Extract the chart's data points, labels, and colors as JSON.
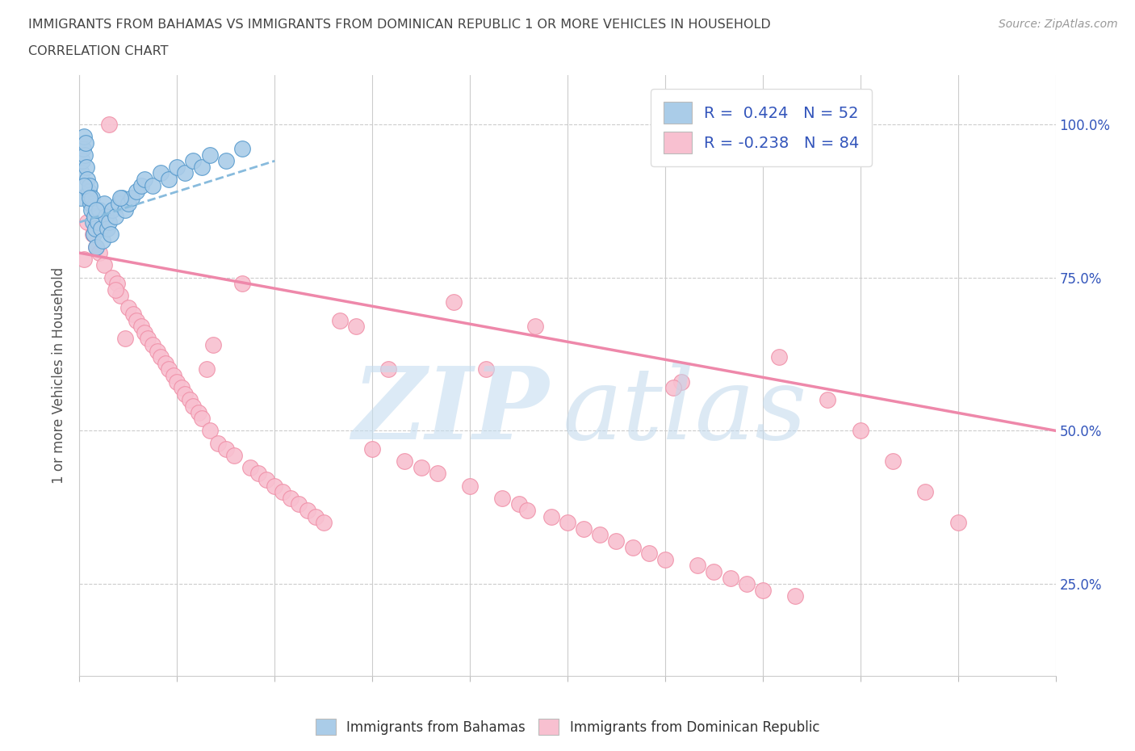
{
  "title_line1": "IMMIGRANTS FROM BAHAMAS VS IMMIGRANTS FROM DOMINICAN REPUBLIC 1 OR MORE VEHICLES IN HOUSEHOLD",
  "title_line2": "CORRELATION CHART",
  "source": "Source: ZipAtlas.com",
  "ylabel": "1 or more Vehicles in Household",
  "xlim": [
    0.0,
    60.0
  ],
  "ylim": [
    10.0,
    108.0
  ],
  "yticks": [
    25,
    50,
    75,
    100
  ],
  "ytick_labels": [
    "25.0%",
    "50.0%",
    "75.0%",
    "100.0%"
  ],
  "bahamas_R": 0.424,
  "bahamas_N": 52,
  "dr_R": -0.238,
  "dr_N": 84,
  "bahamas_color": "#aacce8",
  "bahamas_edge": "#5599cc",
  "dr_color": "#f8c0d0",
  "dr_edge": "#f090a8",
  "trend_bahamas_color": "#88bbdd",
  "trend_dr_color": "#ee88aa",
  "legend_text_color": "#3355bb",
  "watermark_zip_color": "#c8dff0",
  "watermark_atlas_color": "#c0d8ec",
  "dr_x": [
    0.3,
    0.5,
    0.8,
    1.0,
    1.2,
    1.5,
    1.8,
    2.0,
    2.3,
    2.5,
    2.8,
    3.0,
    3.3,
    3.5,
    3.8,
    4.0,
    4.2,
    4.5,
    4.8,
    5.0,
    5.3,
    5.5,
    5.8,
    6.0,
    6.3,
    6.5,
    6.8,
    7.0,
    7.3,
    7.5,
    7.8,
    8.0,
    8.5,
    9.0,
    9.5,
    10.0,
    10.5,
    11.0,
    11.5,
    12.0,
    12.5,
    13.0,
    13.5,
    14.0,
    14.5,
    15.0,
    16.0,
    17.0,
    18.0,
    19.0,
    20.0,
    21.0,
    22.0,
    23.0,
    24.0,
    25.0,
    26.0,
    27.0,
    28.0,
    29.0,
    30.0,
    31.0,
    32.0,
    33.0,
    34.0,
    35.0,
    36.0,
    37.0,
    38.0,
    39.0,
    40.0,
    41.0,
    42.0,
    43.0,
    44.0,
    46.0,
    48.0,
    50.0,
    52.0,
    54.0,
    2.2,
    8.2,
    27.5,
    36.5
  ],
  "dr_y": [
    78,
    84,
    82,
    80,
    79,
    77,
    100,
    75,
    74,
    72,
    65,
    70,
    69,
    68,
    67,
    66,
    65,
    64,
    63,
    62,
    61,
    60,
    59,
    58,
    57,
    56,
    55,
    54,
    53,
    52,
    60,
    50,
    48,
    47,
    46,
    74,
    44,
    43,
    42,
    41,
    40,
    39,
    38,
    37,
    36,
    35,
    68,
    67,
    47,
    60,
    45,
    44,
    43,
    71,
    41,
    60,
    39,
    38,
    67,
    36,
    35,
    34,
    33,
    32,
    31,
    30,
    29,
    58,
    28,
    27,
    26,
    25,
    24,
    62,
    23,
    55,
    50,
    45,
    40,
    35,
    73,
    64,
    37,
    57
  ],
  "bah_x": [
    0.1,
    0.15,
    0.2,
    0.25,
    0.3,
    0.35,
    0.4,
    0.45,
    0.5,
    0.55,
    0.6,
    0.65,
    0.7,
    0.75,
    0.8,
    0.85,
    0.9,
    0.95,
    1.0,
    1.1,
    1.2,
    1.3,
    1.4,
    1.5,
    1.6,
    1.7,
    1.8,
    1.9,
    2.0,
    2.2,
    2.4,
    2.6,
    2.8,
    3.0,
    3.2,
    3.5,
    3.8,
    4.0,
    4.5,
    5.0,
    5.5,
    6.0,
    6.5,
    7.0,
    7.5,
    8.0,
    9.0,
    10.0,
    0.3,
    0.6,
    1.0,
    2.5
  ],
  "bah_y": [
    88,
    92,
    94,
    96,
    98,
    95,
    97,
    93,
    91,
    89,
    90,
    87,
    86,
    88,
    84,
    82,
    85,
    83,
    80,
    84,
    86,
    83,
    81,
    87,
    85,
    83,
    84,
    82,
    86,
    85,
    87,
    88,
    86,
    87,
    88,
    89,
    90,
    91,
    90,
    92,
    91,
    93,
    92,
    94,
    93,
    95,
    94,
    96,
    90,
    88,
    86,
    88
  ],
  "trend_bah_x0": 0.0,
  "trend_bah_x1": 12.0,
  "trend_bah_y0": 84.0,
  "trend_bah_y1": 94.0,
  "trend_dr_x0": 0.0,
  "trend_dr_x1": 60.0,
  "trend_dr_y0": 79.0,
  "trend_dr_y1": 50.0
}
